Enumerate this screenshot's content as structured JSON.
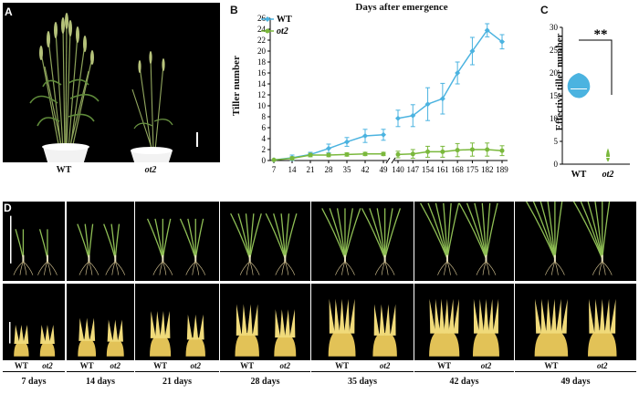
{
  "panelA": {
    "letter": "A",
    "genotypes": [
      "WT",
      "ot2"
    ]
  },
  "panelB": {
    "letter": "B",
    "title": "Days after emergence",
    "ylabel": "Tiller number",
    "legend": [
      "WT",
      "ot2"
    ]
  },
  "panelC": {
    "letter": "C",
    "ylabel": "Effective tiller number",
    "significance": "**",
    "genotypes": [
      "WT",
      "ot2"
    ]
  },
  "panelD": {
    "letter": "D",
    "genotypes": [
      "WT",
      "ot2"
    ],
    "days": [
      "7 days",
      "14 days",
      "21 days",
      "28 days",
      "35 days",
      "42 days",
      "49 days"
    ]
  },
  "chart_data": [
    {
      "type": "line",
      "title": "Days after emergence",
      "xlabel": "",
      "ylabel": "Tiller number",
      "ylim": [
        0,
        26
      ],
      "yticks": [
        "0",
        "2",
        "4",
        "6",
        "8",
        "10",
        "12",
        "14",
        "16",
        "18",
        "20",
        "22",
        "24",
        "26"
      ],
      "segments": [
        {
          "x": [
            "7",
            "14",
            "21",
            "28",
            "35",
            "42",
            "49"
          ],
          "series": [
            {
              "name": "WT",
              "values": [
                0.1,
                0.5,
                1.1,
                2.2,
                3.4,
                4.5,
                4.7
              ],
              "errors": [
                0.1,
                0.5,
                0.4,
                0.8,
                0.8,
                1.2,
                1.0
              ]
            },
            {
              "name": "ot2",
              "values": [
                0.1,
                0.4,
                1.0,
                1.0,
                1.1,
                1.2,
                1.2
              ],
              "errors": [
                0.1,
                0.3,
                0.3,
                0.3,
                0.3,
                0.3,
                0.3
              ]
            }
          ]
        },
        {
          "x": [
            "140",
            "147",
            "154",
            "161",
            "168",
            "175",
            "182",
            "189"
          ],
          "series": [
            {
              "name": "WT",
              "values": [
                7.7,
                8.2,
                10.3,
                11.3,
                16.0,
                20.0,
                23.8,
                21.7
              ],
              "errors": [
                1.5,
                2.0,
                3.0,
                2.8,
                2.0,
                2.5,
                1.2,
                1.3
              ]
            },
            {
              "name": "ot2",
              "values": [
                1.1,
                1.2,
                1.6,
                1.6,
                1.9,
                2.0,
                2.0,
                1.8
              ],
              "errors": [
                0.6,
                0.8,
                1.0,
                1.0,
                1.2,
                1.2,
                1.2,
                0.9
              ]
            }
          ]
        }
      ],
      "colors": {
        "WT": "#4bb3e0",
        "ot2": "#7ab83c"
      }
    },
    {
      "type": "violin",
      "ylabel": "Effective tiller number",
      "ylim": [
        0,
        30
      ],
      "yticks": [
        "0",
        "5",
        "10",
        "15",
        "20",
        "25",
        "30"
      ],
      "categories": [
        "WT",
        "ot2"
      ],
      "distributions": [
        {
          "name": "WT",
          "min": 14.5,
          "max": 20.0,
          "median": 16.5
        },
        {
          "name": "ot2",
          "min": 0.5,
          "max": 3.5,
          "median": 1.5
        }
      ],
      "significance": "**"
    }
  ]
}
